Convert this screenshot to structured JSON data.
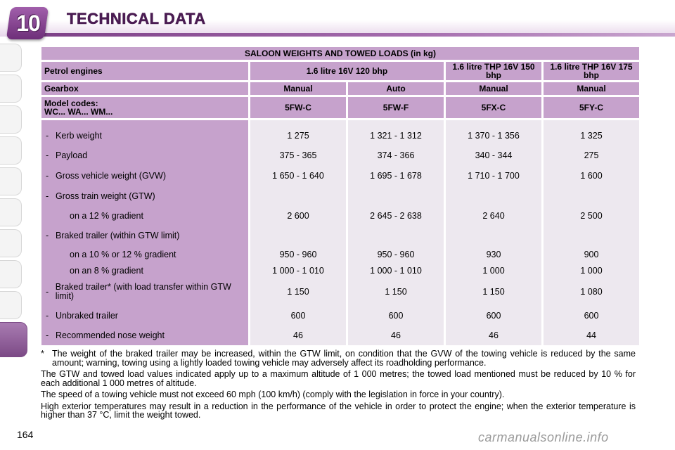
{
  "header": {
    "chapter_number": "10",
    "title": "TECHNICAL DATA"
  },
  "page_number": "164",
  "table": {
    "title": "SALOON WEIGHTS AND TOWED LOADS (in kg)",
    "engine_label": "Petrol engines",
    "engine_1": "1.6 litre 16V 120 bhp",
    "engine_2": "1.6 litre THP 16V 150 bhp",
    "engine_3": "1.6 litre THP 16V 175 bhp",
    "gearbox_label": "Gearbox",
    "gearboxes": [
      "Manual",
      "Auto",
      "Manual",
      "Manual"
    ],
    "model_label_1": "Model codes:",
    "model_label_2": "WC... WA... WM...",
    "models": [
      "5FW-C",
      "5FW-F",
      "5FX-C",
      "5FY-C"
    ],
    "rows": [
      {
        "dash": "-",
        "label": "Kerb weight",
        "values": [
          "1 275",
          "1 321 - 1 312",
          "1 370 - 1 356",
          "1 325"
        ]
      },
      {
        "dash": "-",
        "label": "Payload",
        "values": [
          "375 - 365",
          "374 - 366",
          "340 - 344",
          "275"
        ]
      },
      {
        "dash": "-",
        "label": "Gross vehicle weight (GVW)",
        "values": [
          "1 650 - 1 640",
          "1 695 - 1 678",
          "1 710 - 1 700",
          "1 600"
        ]
      },
      {
        "dash": "-",
        "label": "Gross train weight (GTW)",
        "values": [
          "",
          "",
          "",
          ""
        ]
      },
      {
        "dash": "",
        "label": "on a 12 % gradient",
        "values": [
          "2 600",
          "2 645 - 2 638",
          "2 640",
          "2 500"
        ]
      },
      {
        "dash": "-",
        "label": "Braked trailer (within GTW limit)",
        "values": [
          "",
          "",
          "",
          ""
        ]
      },
      {
        "dash": "",
        "label": "on a 10 % or 12 % gradient",
        "values": [
          "950 - 960",
          "950 - 960",
          "930",
          "900"
        ]
      },
      {
        "dash": "",
        "label": "on an 8 % gradient",
        "values": [
          "1 000 - 1 010",
          "1 000 - 1 010",
          "1 000",
          "1 000"
        ]
      },
      {
        "dash": "-",
        "label": "Braked trailer* (with load transfer within GTW limit)",
        "values": [
          "1 150",
          "1 150",
          "1 150",
          "1 080"
        ]
      },
      {
        "dash": "-",
        "label": "Unbraked trailer",
        "values": [
          "600",
          "600",
          "600",
          "600"
        ]
      },
      {
        "dash": "-",
        "label": "Recommended nose weight",
        "values": [
          "46",
          "46",
          "46",
          "44"
        ]
      }
    ]
  },
  "notes": {
    "star_symbol": "*",
    "star_note": "The weight of the braked trailer may be increased, within the GTW limit, on condition that the GVW of the towing vehicle is reduced by the same amount; warning, towing using a lightly loaded towing vehicle may adversely affect its roadholding performance.",
    "altitude_note": "The GTW and towed load values indicated apply up to a maximum altitude of 1 000 metres; the towed load mentioned must be reduced by 10 % for each additional 1 000 metres of altitude.",
    "speed_note": "The speed of a towing vehicle must not exceed 60 mph (100 km/h) (comply with the legislation in force in your country).",
    "temperature_note": "High exterior temperatures may result in a reduction in the performance of the vehicle in order to protect the engine; when the exterior temperature is higher than 37 °C, limit the weight towed."
  },
  "watermark": "carmanualsonline.info"
}
